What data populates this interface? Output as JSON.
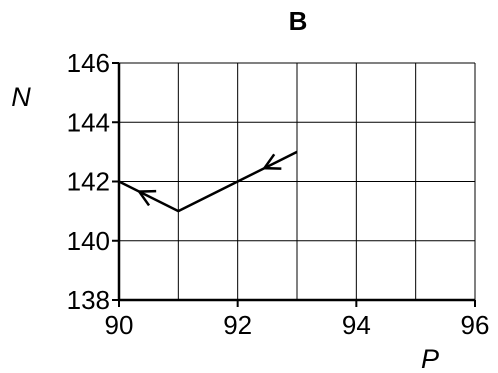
{
  "chart_data": {
    "type": "line",
    "title": "B",
    "xlabel": "P",
    "ylabel": "N",
    "xlim": [
      90,
      96
    ],
    "ylim": [
      138,
      146
    ],
    "x_ticks": [
      90,
      92,
      94,
      96
    ],
    "y_ticks": [
      138,
      140,
      142,
      144,
      146
    ],
    "x_tick_labels": [
      "90",
      "92",
      "94",
      "96"
    ],
    "y_tick_labels": [
      "138",
      "140",
      "142",
      "144",
      "146"
    ],
    "grid": true,
    "grid_x_step": 1,
    "grid_y_step": 2,
    "series": [
      {
        "x": [
          93,
          92,
          91,
          90
        ],
        "y": [
          143,
          142,
          141,
          142
        ],
        "color": "#000000",
        "direction_arrows": true
      }
    ]
  }
}
